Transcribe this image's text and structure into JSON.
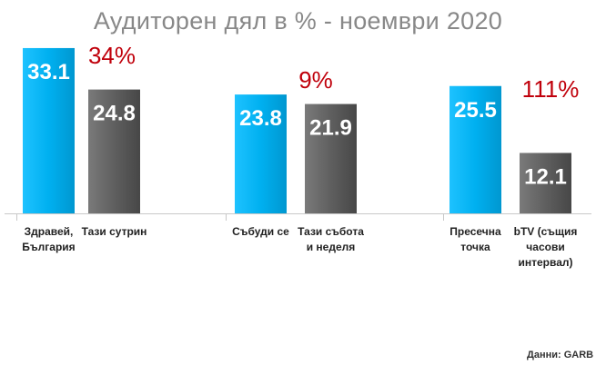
{
  "title": "Аудиторен дял в % - ноември 2020",
  "source": "Данни: GARB",
  "chart_data": {
    "type": "bar",
    "title": "Аудиторен дял в % - ноември 2020",
    "groups": [
      {
        "difference": "34%",
        "bars": [
          {
            "label": [
              "Здравей,",
              "България"
            ],
            "value": 33.1,
            "color": "#00b0f0"
          },
          {
            "label": [
              "Тази сутрин"
            ],
            "value": 24.8,
            "color": "#5a5a5a"
          }
        ]
      },
      {
        "difference": "9%",
        "bars": [
          {
            "label": [
              "Събуди се"
            ],
            "value": 23.8,
            "color": "#00b0f0"
          },
          {
            "label": [
              "Тази събота",
              "и неделя"
            ],
            "value": 21.9,
            "color": "#5a5a5a"
          }
        ]
      },
      {
        "difference": "111%",
        "bars": [
          {
            "label": [
              "Пресечна",
              "точка"
            ],
            "value": 25.5,
            "color": "#00b0f0"
          },
          {
            "label": [
              "bTV (същия",
              "часови",
              "интервал)"
            ],
            "value": 12.1,
            "color": "#5a5a5a"
          }
        ]
      }
    ]
  }
}
